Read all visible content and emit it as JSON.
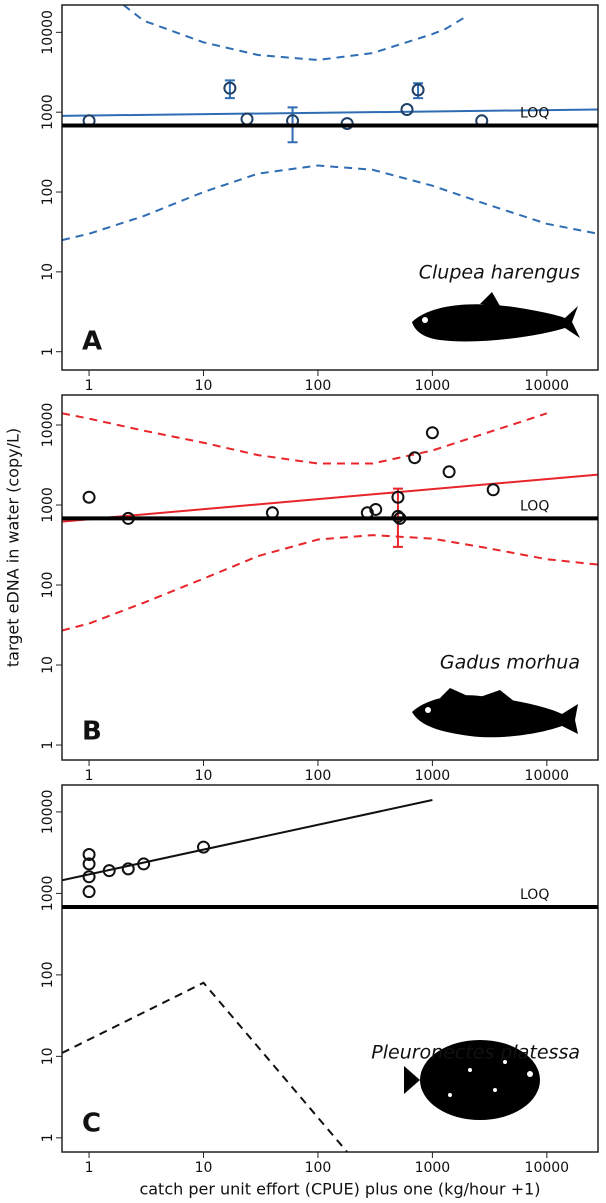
{
  "chart_data": [
    {
      "type": "scatter",
      "log_x": true,
      "log_y": true,
      "color": "#2e6db4",
      "point_color": "#1f3f66",
      "panel_label": "A",
      "species": "Clupea harengus",
      "loq": 680,
      "loq_label": "LOQ",
      "xlim": [
        0.58,
        28000
      ],
      "ylim": [
        0.59,
        22000
      ],
      "xticks": [
        1,
        10,
        100,
        1000,
        10000
      ],
      "yticks": [
        1,
        10,
        100,
        1000,
        10000
      ],
      "x": [
        1,
        17,
        24,
        60,
        180,
        600,
        750,
        2700
      ],
      "values": [
        780,
        2000,
        820,
        780,
        720,
        1080,
        1900,
        780
      ],
      "err_low": [
        null,
        1500,
        null,
        420,
        null,
        null,
        1500,
        null
      ],
      "err_high": [
        null,
        2500,
        null,
        1150,
        null,
        null,
        2300,
        null
      ],
      "fit": {
        "x": [
          0.58,
          28000
        ],
        "y": [
          900,
          1080
        ]
      },
      "bands": [
        {
          "x": [
            2,
            3,
            10,
            30,
            100,
            300,
            1000,
            1300,
            2000
          ],
          "y": [
            22000,
            14000,
            7500,
            5200,
            4500,
            5500,
            9500,
            11000,
            16000
          ]
        },
        {
          "x": [
            0.58,
            1,
            3,
            10,
            30,
            100,
            300,
            1000,
            3000,
            10000,
            28000
          ],
          "y": [
            25,
            30,
            50,
            100,
            170,
            215,
            190,
            120,
            70,
            40,
            30
          ]
        }
      ]
    },
    {
      "type": "scatter",
      "log_x": true,
      "log_y": true,
      "color": "#e8252a",
      "point_color": "#111111",
      "panel_label": "B",
      "species": "Gadus morhua",
      "loq": 680,
      "loq_label": "LOQ",
      "y_label": "target eDNA in water (copy/L)",
      "xlim": [
        0.58,
        28000
      ],
      "ylim": [
        0.65,
        23700
      ],
      "xticks": [
        1,
        10,
        100,
        1000,
        10000
      ],
      "yticks": [
        1,
        10,
        100,
        1000,
        10000
      ],
      "x": [
        1,
        2.2,
        40,
        270,
        320,
        500,
        500,
        520,
        700,
        1000,
        1400,
        3400
      ],
      "values": [
        1250,
        680,
        800,
        800,
        880,
        1250,
        720,
        680,
        3900,
        8000,
        2600,
        1550
      ],
      "err_low": [
        null,
        null,
        null,
        null,
        null,
        300,
        null,
        null,
        null,
        null,
        null,
        null
      ],
      "err_high": [
        null,
        null,
        null,
        null,
        null,
        1600,
        null,
        null,
        null,
        null,
        null,
        null
      ],
      "fit": {
        "x": [
          0.58,
          28000
        ],
        "y": [
          620,
          2400
        ]
      },
      "bands": [
        {
          "x": [
            0.58,
            1,
            3,
            10,
            30,
            100,
            300,
            1000,
            3000,
            6000,
            10000
          ],
          "y": [
            14000,
            12000,
            8500,
            6000,
            4200,
            3300,
            3300,
            4800,
            8000,
            11000,
            14000
          ]
        },
        {
          "x": [
            0.58,
            1,
            3,
            10,
            30,
            100,
            300,
            1000,
            3000,
            10000,
            28000
          ],
          "y": [
            27,
            33,
            60,
            120,
            230,
            370,
            420,
            380,
            290,
            210,
            180
          ]
        }
      ]
    },
    {
      "type": "scatter",
      "log_x": true,
      "log_y": true,
      "color": "#111111",
      "point_color": "#111111",
      "panel_label": "C",
      "species": "Pleuronectes platessa",
      "loq": 680,
      "loq_label": "LOQ",
      "x_label": "catch per unit effort (CPUE) plus one (kg/hour +1)",
      "xlim": [
        0.58,
        28000
      ],
      "ylim": [
        0.67,
        21400
      ],
      "xticks": [
        1,
        10,
        100,
        1000,
        10000
      ],
      "yticks": [
        1,
        10,
        100,
        1000,
        10000
      ],
      "x": [
        1,
        1,
        1,
        1,
        1.5,
        2.2,
        3,
        10
      ],
      "values": [
        1050,
        1600,
        2300,
        3000,
        1900,
        2000,
        2300,
        3700
      ],
      "err_low": [
        null,
        null,
        null,
        null,
        null,
        null,
        null,
        null
      ],
      "err_high": [
        null,
        null,
        null,
        null,
        null,
        null,
        null,
        null
      ],
      "fit": {
        "x": [
          0.58,
          1000
        ],
        "y": [
          1450,
          14000
        ]
      },
      "bands": [
        {
          "x": [
            0.58,
            10,
            180
          ],
          "y": [
            11,
            80,
            0.67
          ]
        }
      ]
    }
  ]
}
